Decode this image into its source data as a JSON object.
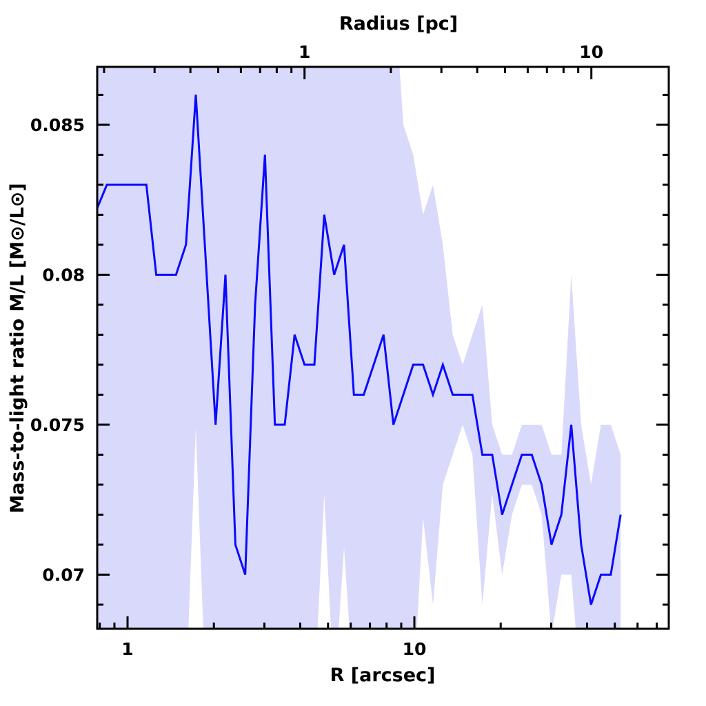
{
  "chart_data": {
    "type": "line",
    "title": "",
    "xlabel": "R [arcsec]",
    "x2label": "Radius [pc]",
    "ylabel": "Mass-to-light ratio M/L [M⊙/L⊙]",
    "xscale": "log",
    "xlim": [
      0.784,
      77
    ],
    "ylim": [
      0.0682,
      0.0869
    ],
    "pc_per_arcsec": 0.2415,
    "grid": false,
    "legend": "none",
    "colors": {
      "line": "#0a0aff",
      "band": "#d9d9fb",
      "axis": "#000000"
    },
    "x_major_ticks": [
      1,
      10
    ],
    "x_major_labels": [
      "1",
      "10"
    ],
    "x_minor_ticks": [
      0.8,
      0.9,
      2,
      3,
      4,
      5,
      6,
      7,
      8,
      9,
      20,
      30,
      40,
      50,
      60,
      70
    ],
    "x2_major_ticks": [
      1,
      10
    ],
    "x2_major_labels": [
      "1",
      "10"
    ],
    "x2_minor_ticks": [
      0.2,
      0.3,
      0.4,
      0.5,
      0.6,
      0.7,
      0.8,
      0.9,
      2,
      3,
      4,
      5,
      6,
      7,
      8,
      9
    ],
    "y_major_ticks": [
      0.07,
      0.075,
      0.08,
      0.085
    ],
    "y_major_labels": [
      "0.07",
      "0.075",
      "0.08",
      "0.085"
    ],
    "y_minor_ticks": [
      0.069,
      0.071,
      0.072,
      0.073,
      0.074,
      0.076,
      0.077,
      0.078,
      0.079,
      0.081,
      0.082,
      0.083,
      0.084,
      0.086
    ],
    "x": [
      0.782,
      0.847,
      0.917,
      0.993,
      1.075,
      1.163,
      1.259,
      1.363,
      1.476,
      1.598,
      1.73,
      1.873,
      2.027,
      2.194,
      2.376,
      2.572,
      2.784,
      3.014,
      3.263,
      3.532,
      3.824,
      4.14,
      4.481,
      4.851,
      5.252,
      5.685,
      6.155,
      6.663,
      7.213,
      7.808,
      8.453,
      9.151,
      9.906,
      10.72,
      11.61,
      12.57,
      13.6,
      14.73,
      15.94,
      17.26,
      18.68,
      20.23,
      21.9,
      23.7,
      25.66,
      27.78,
      30.07,
      32.55,
      35.24,
      38.15,
      41.3,
      44.71,
      48.4,
      52.4
    ],
    "series": [
      {
        "name": "M/L",
        "values": [
          0.0822,
          0.083,
          0.083,
          0.083,
          0.083,
          0.083,
          0.08,
          0.08,
          0.08,
          0.081,
          0.086,
          0.0805,
          0.075,
          0.08,
          0.071,
          0.07,
          0.079,
          0.084,
          0.075,
          0.075,
          0.078,
          0.077,
          0.077,
          0.082,
          0.08,
          0.081,
          0.076,
          0.076,
          0.077,
          0.078,
          0.075,
          0.076,
          0.077,
          0.077,
          0.076,
          0.077,
          0.076,
          0.076,
          0.076,
          0.074,
          0.074,
          0.072,
          0.073,
          0.074,
          0.074,
          0.073,
          0.071,
          0.072,
          0.075,
          0.071,
          0.069,
          0.07,
          0.07,
          0.072
        ]
      }
    ],
    "band": {
      "name": "uncertainty",
      "upper": [
        0.09,
        0.09,
        0.09,
        0.09,
        0.09,
        0.09,
        0.09,
        0.09,
        0.09,
        0.09,
        0.09,
        0.09,
        0.09,
        0.09,
        0.09,
        0.09,
        0.09,
        0.09,
        0.09,
        0.09,
        0.09,
        0.09,
        0.09,
        0.09,
        0.09,
        0.09,
        0.09,
        0.09,
        0.09,
        0.09,
        0.09,
        0.085,
        0.084,
        0.082,
        0.083,
        0.081,
        0.078,
        0.077,
        0.078,
        0.079,
        0.075,
        0.074,
        0.074,
        0.075,
        0.075,
        0.075,
        0.074,
        0.074,
        0.08,
        0.075,
        0.073,
        0.075,
        0.075,
        0.074
      ],
      "lower": [
        0.066,
        0.066,
        0.066,
        0.066,
        0.066,
        0.066,
        0.066,
        0.066,
        0.066,
        0.066,
        0.0749,
        0.066,
        0.066,
        0.066,
        0.066,
        0.066,
        0.066,
        0.066,
        0.066,
        0.066,
        0.066,
        0.066,
        0.066,
        0.0727,
        0.066,
        0.0709,
        0.066,
        0.066,
        0.066,
        0.066,
        0.066,
        0.066,
        0.066,
        0.0719,
        0.069,
        0.073,
        0.074,
        0.075,
        0.074,
        0.069,
        0.0727,
        0.07,
        0.072,
        0.073,
        0.073,
        0.072,
        0.068,
        0.07,
        0.07,
        0.066,
        0.066,
        0.066,
        0.066,
        0.066
      ]
    }
  }
}
